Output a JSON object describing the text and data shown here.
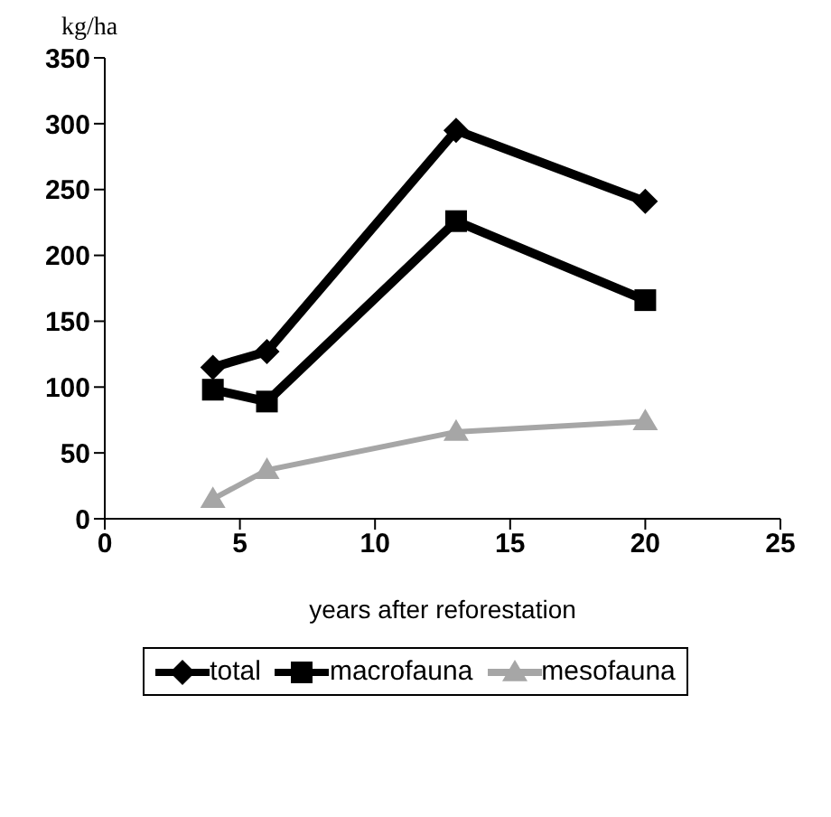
{
  "chart_data": {
    "type": "line",
    "ylabel": "kg/ha",
    "xlabel": "years after reforestation",
    "x": [
      4,
      6,
      13,
      20
    ],
    "series": [
      {
        "name": "total",
        "color": "#000000",
        "values": [
          115,
          127,
          295,
          241
        ],
        "marker": "diamond"
      },
      {
        "name": "macrofauna",
        "color": "#000000",
        "values": [
          98,
          89,
          226,
          166
        ],
        "marker": "square"
      },
      {
        "name": "mesofauna",
        "color": "#a6a6a6",
        "values": [
          15,
          37,
          66,
          74
        ],
        "marker": "triangle"
      }
    ],
    "xlim": [
      0,
      25
    ],
    "xticks": [
      0,
      5,
      10,
      15,
      20,
      25
    ],
    "ylim": [
      0,
      350
    ],
    "yticks": [
      0,
      50,
      100,
      150,
      200,
      250,
      300,
      350
    ],
    "legend": "bottom"
  }
}
